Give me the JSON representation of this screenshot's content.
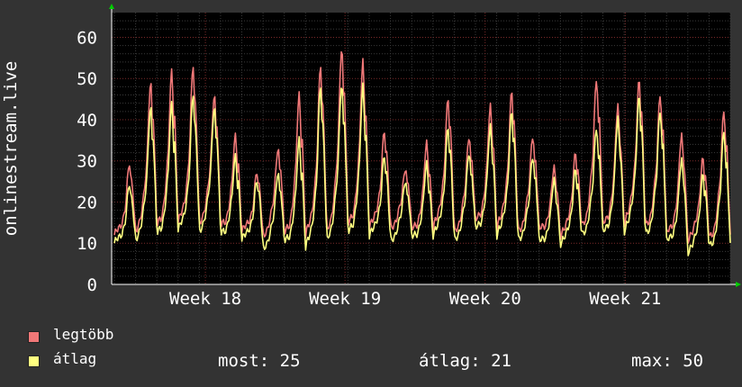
{
  "chart_data": {
    "type": "line",
    "ylabel": "onlinestream.live",
    "ylim": [
      0,
      66
    ],
    "y_ticks": [
      0,
      10,
      20,
      30,
      40,
      50,
      60
    ],
    "x_ticks": [
      {
        "label": "Week 18",
        "pos": 0.1515
      },
      {
        "label": "Week 19",
        "pos": 0.3772
      },
      {
        "label": "Week 20",
        "pos": 0.6037
      },
      {
        "label": "Week 21",
        "pos": 0.8302
      }
    ],
    "day_peaks": [
      {
        "max": 29,
        "avg": 24
      },
      {
        "max": 50,
        "avg": 44
      },
      {
        "max": 52,
        "avg": 44
      },
      {
        "max": 53,
        "avg": 46
      },
      {
        "max": 47,
        "avg": 44
      },
      {
        "max": 36,
        "avg": 31
      },
      {
        "max": 27,
        "avg": 25
      },
      {
        "max": 34,
        "avg": 28
      },
      {
        "max": 46,
        "avg": 35
      },
      {
        "max": 53,
        "avg": 48
      },
      {
        "max": 59,
        "avg": 50
      },
      {
        "max": 54,
        "avg": 48
      },
      {
        "max": 37,
        "avg": 31
      },
      {
        "max": 29,
        "avg": 26
      },
      {
        "max": 34,
        "avg": 29
      },
      {
        "max": 45,
        "avg": 38
      },
      {
        "max": 37,
        "avg": 33
      },
      {
        "max": 43,
        "avg": 38
      },
      {
        "max": 47,
        "avg": 42
      },
      {
        "max": 37,
        "avg": 32
      },
      {
        "max": 28,
        "avg": 25
      },
      {
        "max": 32,
        "avg": 28
      },
      {
        "max": 51,
        "avg": 39
      },
      {
        "max": 43,
        "avg": 40
      },
      {
        "max": 50,
        "avg": 46
      },
      {
        "max": 47,
        "avg": 43
      },
      {
        "max": 36,
        "avg": 30
      },
      {
        "max": 31,
        "avg": 27
      },
      {
        "max": 43,
        "avg": 38
      }
    ],
    "day_valleys": [
      {
        "max": 12,
        "avg": 10
      },
      {
        "max": 13,
        "avg": 11
      },
      {
        "max": 14,
        "avg": 12
      },
      {
        "max": 15,
        "avg": 13
      },
      {
        "max": 15,
        "avg": 13
      },
      {
        "max": 14,
        "avg": 12
      },
      {
        "max": 13,
        "avg": 11
      },
      {
        "max": 12,
        "avg": 9
      },
      {
        "max": 12,
        "avg": 10
      },
      {
        "max": 12,
        "avg": 9
      },
      {
        "max": 13,
        "avg": 11
      },
      {
        "max": 14,
        "avg": 12
      },
      {
        "max": 14,
        "avg": 12
      },
      {
        "max": 14,
        "avg": 11
      },
      {
        "max": 13,
        "avg": 11
      },
      {
        "max": 14,
        "avg": 12
      },
      {
        "max": 13,
        "avg": 11
      },
      {
        "max": 15,
        "avg": 13
      },
      {
        "max": 14,
        "avg": 12
      },
      {
        "max": 13,
        "avg": 11
      },
      {
        "max": 13,
        "avg": 10
      },
      {
        "max": 12,
        "avg": 10
      },
      {
        "max": 14,
        "avg": 12
      },
      {
        "max": 14,
        "avg": 12
      },
      {
        "max": 15,
        "avg": 13
      },
      {
        "max": 14,
        "avg": 12
      },
      {
        "max": 12,
        "avg": 10
      },
      {
        "max": 11,
        "avg": 8
      },
      {
        "max": 11,
        "avg": 9
      }
    ],
    "series": [
      {
        "name": "legtöbb",
        "color": "#f07878"
      },
      {
        "name": "átlag",
        "color": "#ffff80"
      }
    ],
    "grid": true
  },
  "legend": {
    "max_label": "legtöbb",
    "avg_label": "átlag",
    "max_color": "#f07878",
    "avg_color": "#ffff80"
  },
  "stats": {
    "now": "most: 25",
    "avg": "átlag: 21",
    "max": "max: 50"
  }
}
